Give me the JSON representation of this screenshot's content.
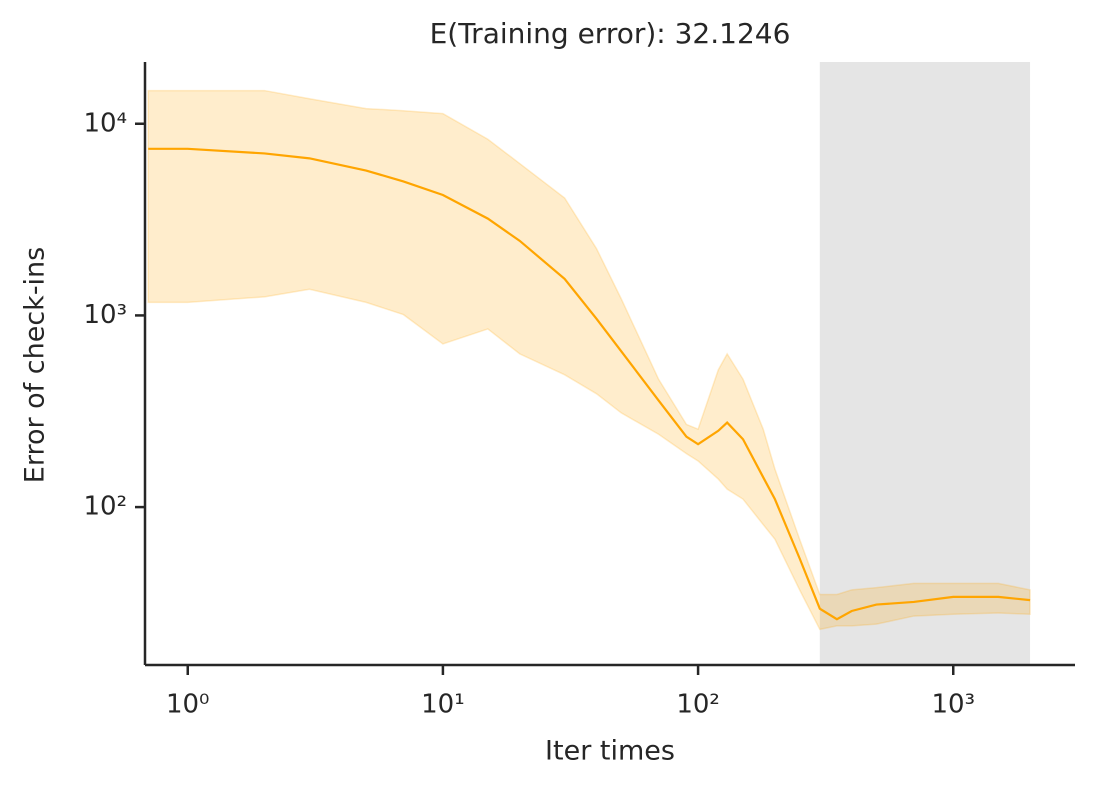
{
  "chart_data": {
    "type": "line",
    "title": "E(Training error): 32.1246",
    "xlabel": "Iter times",
    "ylabel": "Error of check-ins",
    "xscale": "log",
    "yscale": "log",
    "xlim": [
      0.68,
      3000
    ],
    "ylim": [
      15,
      21000
    ],
    "xticks": [
      {
        "value": 1,
        "label": "10⁰"
      },
      {
        "value": 10,
        "label": "10¹"
      },
      {
        "value": 100,
        "label": "10²"
      },
      {
        "value": 1000,
        "label": "10³"
      }
    ],
    "yticks": [
      {
        "value": 100,
        "label": "10²"
      },
      {
        "value": 1000,
        "label": "10³"
      },
      {
        "value": 10000,
        "label": "10⁴"
      }
    ],
    "shaded_span": [
      300,
      2000
    ],
    "shaded_color": "#e5e5e5",
    "x": [
      0.7,
      1,
      2,
      3,
      5,
      7,
      10,
      15,
      20,
      30,
      40,
      50,
      70,
      90,
      100,
      120,
      130,
      150,
      180,
      200,
      250,
      300,
      350,
      400,
      500,
      700,
      1000,
      1500,
      2000
    ],
    "series": [
      {
        "color": "#ffa500",
        "band_opacity": 0.2,
        "values": [
          7400,
          7400,
          7000,
          6600,
          5700,
          5000,
          4250,
          3200,
          2450,
          1550,
          960,
          650,
          360,
          233,
          213,
          250,
          276,
          226,
          143,
          110,
          54,
          29.5,
          26,
          28.7,
          31,
          32,
          34,
          34,
          32.7
        ],
        "upper": [
          14900,
          14900,
          14900,
          13500,
          12000,
          11700,
          11300,
          8300,
          6200,
          4100,
          2230,
          1220,
          465,
          270,
          255,
          520,
          630,
          465,
          255,
          158,
          68,
          35,
          35,
          37,
          38,
          40,
          40,
          40,
          37
        ],
        "lower": [
          1170,
          1170,
          1250,
          1370,
          1170,
          1010,
          710,
          850,
          630,
          490,
          390,
          310,
          240,
          190,
          174,
          140,
          124,
          110,
          81,
          68,
          37,
          23,
          24,
          24,
          24.5,
          27,
          27.6,
          28,
          27.6
        ]
      }
    ]
  }
}
